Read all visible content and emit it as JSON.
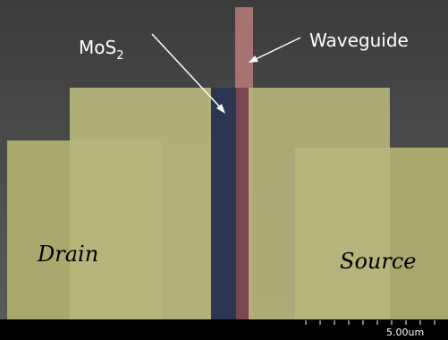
{
  "labels": {
    "mos2": "MoS",
    "mos2_subscript": "2",
    "waveguide": "Waveguide",
    "drain": "Drain",
    "source": "Source"
  },
  "scale_bar": {
    "label": "5.00um"
  }
}
